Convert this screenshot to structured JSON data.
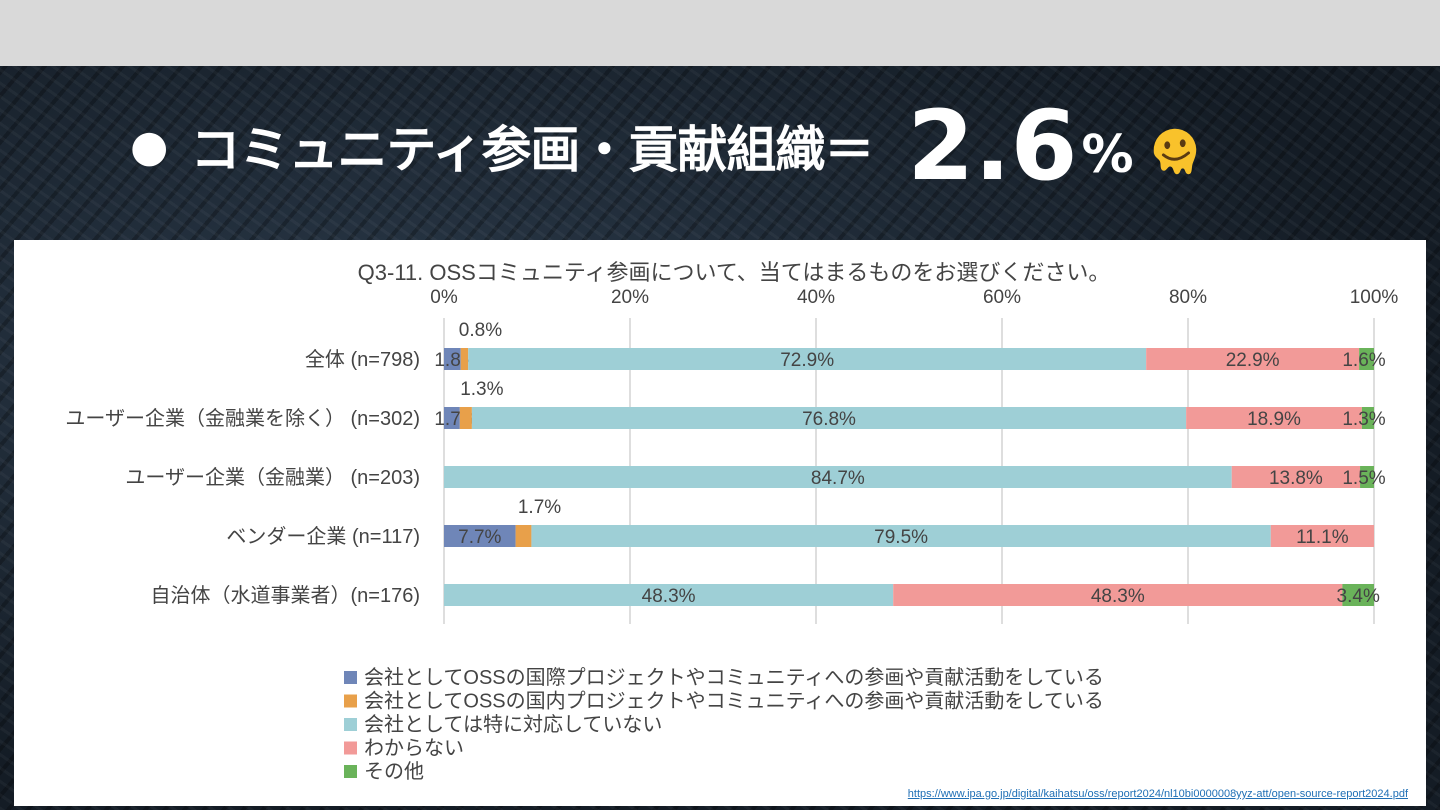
{
  "slide": {
    "bullet": "●",
    "title_main": "コミュニティ参画・貢献組織＝",
    "title_value": "2.6",
    "title_unit": "%",
    "emoji_icon": "melting-face-emoji",
    "source_url": "https://www.ipa.go.jp/digital/kaihatsu/oss/report2024/nl10bi0000008yyz-att/open-source-report2024.pdf"
  },
  "chart_data": {
    "type": "bar",
    "orientation": "horizontal",
    "stacked": true,
    "title": "Q3-11. OSSコミュニティ参画について、当てはまるものをお選びください。",
    "xlim": [
      0,
      100
    ],
    "xticks": [
      "0%",
      "20%",
      "40%",
      "60%",
      "80%",
      "100%"
    ],
    "categories": [
      "全体 (n=798)",
      "ユーザー企業（金融業を除く） (n=302)",
      "ユーザー企業（金融業） (n=203)",
      "ベンダー企業 (n=117)",
      "自治体（水道事業者）(n=176)"
    ],
    "series": [
      {
        "name": "会社としてOSSの国際プロジェクトやコミュニティへの参画や貢献活動をしている",
        "color": "#6f86b8",
        "values": [
          1.8,
          1.7,
          0,
          7.7,
          0
        ],
        "labels": [
          "1.8%",
          "1.7%",
          "",
          "7.7%",
          ""
        ]
      },
      {
        "name": "会社としてOSSの国内プロジェクトやコミュニティへの参画や貢献活動をしている",
        "color": "#e8a04a",
        "values": [
          0.8,
          1.3,
          0,
          1.7,
          0
        ],
        "labels": [
          "0.8%",
          "1.3%",
          "",
          "1.7%",
          ""
        ]
      },
      {
        "name": "会社としては特に対応していない",
        "color": "#9ecfd6",
        "values": [
          72.9,
          76.8,
          84.7,
          79.5,
          48.3
        ],
        "labels": [
          "72.9%",
          "76.8%",
          "84.7%",
          "79.5%",
          "48.3%"
        ]
      },
      {
        "name": "わからない",
        "color": "#f29a98",
        "values": [
          22.9,
          18.9,
          13.8,
          11.1,
          48.3
        ],
        "labels": [
          "22.9%",
          "18.9%",
          "13.8%",
          "11.1%",
          "48.3%"
        ]
      },
      {
        "name": "その他",
        "color": "#6ab35a",
        "values": [
          1.6,
          1.3,
          1.5,
          0,
          3.4
        ],
        "labels": [
          "1.6%",
          "1.3%",
          "1.5%",
          "",
          "3.4%"
        ]
      }
    ],
    "grid": true,
    "legend_position": "bottom"
  }
}
